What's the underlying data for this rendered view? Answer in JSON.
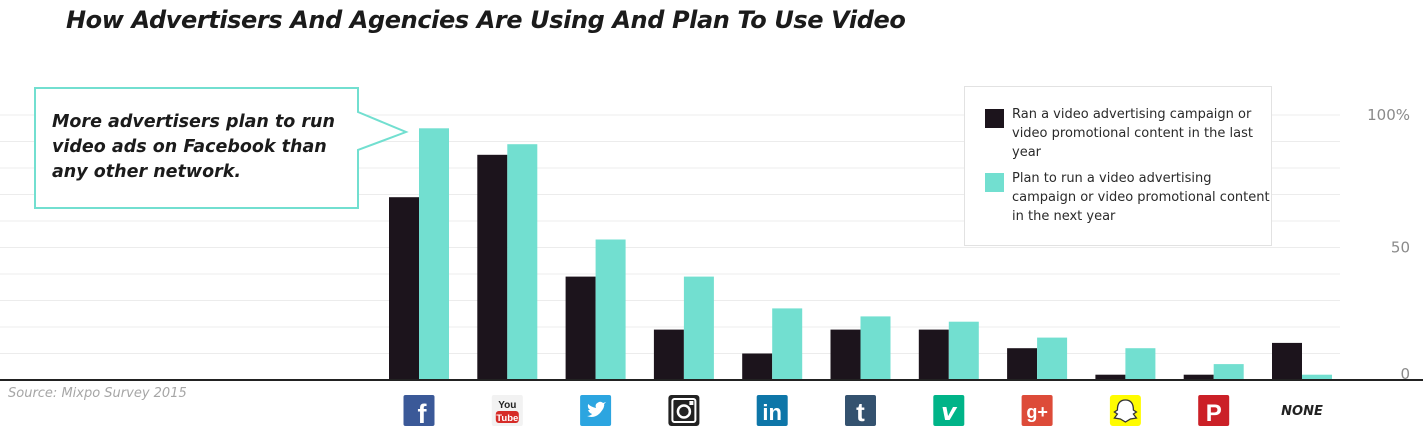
{
  "title": "How Advertisers And Agencies Are Using And Plan To Use Video",
  "callout": {
    "lines": [
      "More advertisers plan to run",
      "video ads on Facebook than",
      "any other network."
    ]
  },
  "legend": {
    "items": [
      {
        "label": "Ran a video advertising campaign or video promotional content in the last year",
        "color": "#1c141c"
      },
      {
        "label": "Plan to run a video advertising campaign or video promotional content in the next year",
        "color": "#72dfd0"
      }
    ]
  },
  "source": "Source: Mixpo Survey 2015",
  "colors": {
    "dark": "#1c141c",
    "teal": "#72dfd0",
    "gridline": "#ececec",
    "axis": "#222222",
    "callout_border": "#72dfd0"
  },
  "chart_data": {
    "type": "bar",
    "categories": [
      "Facebook",
      "YouTube",
      "Twitter",
      "Instagram",
      "LinkedIn",
      "Tumblr",
      "Vine",
      "Google+",
      "Snapchat",
      "Pinterest",
      "NONE"
    ],
    "category_icons": [
      "facebook-icon",
      "youtube-icon",
      "twitter-icon",
      "instagram-icon",
      "linkedin-icon",
      "tumblr-icon",
      "vine-icon",
      "google-plus-icon",
      "snapchat-icon",
      "pinterest-icon",
      ""
    ],
    "series": [
      {
        "name": "Ran a video advertising campaign or video promotional content in the last year",
        "values": [
          69,
          85,
          39,
          19,
          10,
          19,
          19,
          12,
          2,
          2,
          14
        ]
      },
      {
        "name": "Plan to run a video advertising campaign or video promotional content in the next year",
        "values": [
          95,
          89,
          53,
          39,
          27,
          24,
          22,
          16,
          12,
          6,
          2
        ]
      }
    ],
    "y_ticks": [
      "100%",
      "50",
      "0"
    ],
    "y_tick_values": [
      100,
      50,
      0
    ],
    "ylim": [
      0,
      100
    ],
    "grid": true,
    "legend_position": "top-right",
    "xlabel": "",
    "ylabel": ""
  }
}
